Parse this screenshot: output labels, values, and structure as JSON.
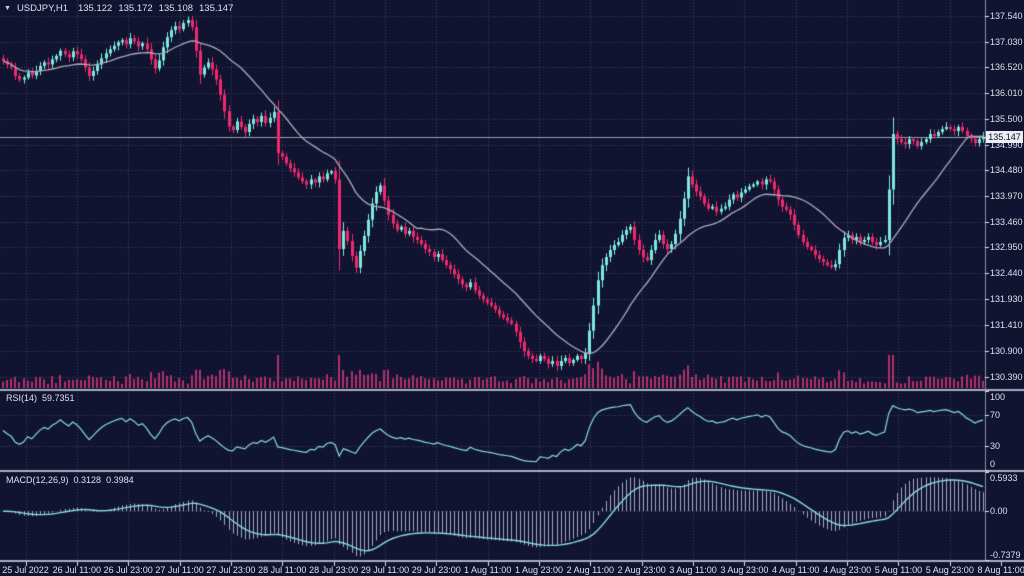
{
  "header": {
    "symbol_timeframe": "USDJPY,H1",
    "quote": {
      "open": "135.122",
      "high": "135.172",
      "low": "135.108",
      "close": "135.147"
    }
  },
  "price_axis": {
    "labels": [
      "137.540",
      "137.030",
      "136.520",
      "136.010",
      "135.500",
      "134.990",
      "134.480",
      "133.970",
      "133.460",
      "132.950",
      "132.440",
      "131.930",
      "131.410",
      "130.900",
      "130.390"
    ],
    "current_price": "135.147"
  },
  "time_axis": {
    "labels": [
      "25 Jul 2022",
      "26 Jul 11:00",
      "26 Jul 23:00",
      "27 Jul 11:00",
      "27 Jul 23:00",
      "28 Jul 11:00",
      "28 Jul 23:00",
      "29 Jul 11:00",
      "29 Jul 23:00",
      "1 Aug 11:00",
      "1 Aug 23:00",
      "2 Aug 11:00",
      "2 Aug 23:00",
      "3 Aug 11:00",
      "3 Aug 23:00",
      "4 Aug 11:00",
      "4 Aug 23:00",
      "5 Aug 11:00",
      "5 Aug 23:00",
      "8 Aug 11:00"
    ]
  },
  "panels": {
    "rsi": {
      "label": "RSI(14)",
      "value": "59.7351",
      "axis_labels": [
        "100",
        "70",
        "30",
        "0"
      ]
    },
    "macd": {
      "label": "MACD(12,26,9)",
      "value_main": "0.3128",
      "value_signal": "0.3984",
      "axis_labels": [
        "0.5933",
        "0.00",
        "-0.7379"
      ]
    }
  },
  "colors": {
    "background": "#111431",
    "grid": "#3a4066",
    "bull": "#7ee8dd",
    "bear": "#f0296d",
    "volume": "#b03069",
    "moving_average": "#a9abb8",
    "indicator_line": "#85d9e6",
    "macd_histogram": "#c9cdea",
    "text": "#dde0ec",
    "separator": "#a9adc0",
    "axis_line": "#8a8ea4",
    "current_price_line": "#9a9eae",
    "price_tag_bg": "#eceef4",
    "price_tag_text": "#10132e"
  },
  "chart_data": {
    "type": "candlestick",
    "symbol": "USDJPY",
    "timeframe": "H1",
    "last_bar": {
      "open": 135.122,
      "high": 135.172,
      "low": 135.108,
      "close": 135.147
    },
    "price_axis_top": 137.54,
    "price_axis_bottom": 130.39,
    "price_gridline_step": 0.51,
    "current_price": 135.147,
    "closes": [
      136.65,
      136.58,
      136.52,
      136.35,
      136.28,
      136.32,
      136.42,
      136.36,
      136.45,
      136.55,
      136.62,
      136.58,
      136.68,
      136.75,
      136.85,
      136.78,
      136.72,
      136.84,
      136.78,
      136.68,
      136.52,
      136.35,
      136.45,
      136.58,
      136.7,
      136.8,
      136.88,
      136.95,
      137.02,
      137.06,
      136.98,
      137.1,
      137.04,
      136.94,
      137.0,
      136.88,
      136.68,
      136.5,
      136.66,
      136.92,
      137.12,
      137.26,
      137.34,
      137.28,
      137.4,
      137.46,
      137.32,
      136.85,
      136.38,
      136.52,
      136.62,
      136.48,
      136.28,
      135.98,
      135.65,
      135.35,
      135.28,
      135.45,
      135.34,
      135.24,
      135.4,
      135.5,
      135.44,
      135.56,
      135.42,
      135.52,
      135.64,
      134.82,
      134.75,
      134.62,
      134.52,
      134.44,
      134.34,
      134.26,
      134.2,
      134.3,
      134.24,
      134.36,
      134.3,
      134.42,
      134.46,
      134.3,
      132.92,
      133.28,
      133.08,
      132.78,
      132.55,
      132.88,
      133.18,
      133.5,
      133.82,
      134.05,
      134.18,
      133.88,
      133.6,
      133.42,
      133.3,
      133.36,
      133.22,
      133.28,
      133.16,
      133.1,
      133.02,
      132.92,
      132.86,
      132.76,
      132.82,
      132.7,
      132.6,
      132.52,
      132.42,
      132.32,
      132.22,
      132.16,
      132.26,
      132.1,
      132.0,
      131.92,
      131.86,
      131.8,
      131.72,
      131.62,
      131.56,
      131.5,
      131.44,
      131.28,
      131.08,
      130.9,
      130.8,
      130.74,
      130.7,
      130.8,
      130.74,
      130.64,
      130.7,
      130.6,
      130.7,
      130.76,
      130.66,
      130.72,
      130.8,
      130.74,
      130.86,
      131.3,
      131.8,
      132.3,
      132.6,
      132.76,
      132.9,
      133.0,
      133.06,
      133.2,
      133.3,
      133.36,
      133.1,
      132.9,
      132.76,
      132.7,
      132.9,
      133.1,
      133.2,
      133.02,
      132.92,
      133.02,
      133.22,
      133.52,
      133.92,
      134.36,
      134.2,
      134.06,
      133.96,
      133.82,
      133.72,
      133.76,
      133.66,
      133.72,
      133.76,
      133.9,
      134.0,
      133.94,
      134.04,
      134.1,
      134.16,
      134.2,
      134.26,
      134.2,
      134.3,
      134.26,
      134.1,
      133.9,
      133.76,
      133.7,
      133.6,
      133.4,
      133.2,
      133.06,
      132.96,
      132.9,
      132.8,
      132.72,
      132.66,
      132.6,
      132.56,
      132.62,
      132.9,
      133.14,
      133.2,
      133.1,
      133.16,
      133.06,
      133.1,
      133.16,
      133.06,
      133.0,
      133.06,
      133.1,
      134.1,
      135.2,
      135.1,
      135.04,
      135.0,
      135.1,
      135.06,
      134.96,
      135.04,
      135.1,
      135.2,
      135.16,
      135.24,
      135.3,
      135.34,
      135.3,
      135.26,
      135.34,
      135.26,
      135.16,
      135.1,
      135.02,
      135.1,
      135.147
    ],
    "overlays": [
      {
        "name": "moving_average",
        "period": 20
      }
    ],
    "indicators": [
      {
        "name": "RSI",
        "period": 14,
        "value": 59.7351,
        "levels": [
          70,
          30
        ],
        "range": [
          0,
          100
        ]
      },
      {
        "name": "MACD",
        "fast": 12,
        "slow": 26,
        "signal": 9,
        "value_main": 0.3128,
        "value_signal": 0.3984,
        "range": [
          -0.7379,
          0.5933
        ]
      }
    ]
  }
}
